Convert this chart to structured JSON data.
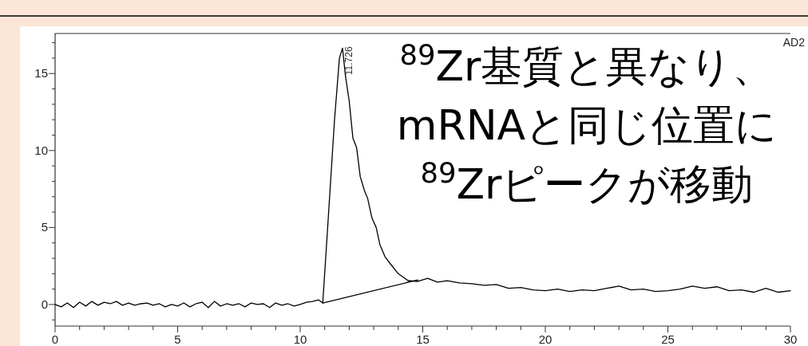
{
  "chart_data": {
    "type": "line",
    "marker": "none",
    "line_style": "solid",
    "xlim": [
      0,
      30
    ],
    "ylim": [
      -1.4,
      17.6
    ],
    "xticks": [
      0,
      {
        "value": 1,
        "label": null
      },
      {
        "value": 2,
        "label": null
      },
      {
        "value": 3,
        "label": null
      },
      {
        "value": 4,
        "label": null
      },
      5,
      {
        "value": 6,
        "label": null
      },
      {
        "value": 7,
        "label": null
      },
      {
        "value": 8,
        "label": null
      },
      {
        "value": 9,
        "label": null
      },
      10,
      {
        "value": 11,
        "label": null
      },
      {
        "value": 12,
        "label": null
      },
      {
        "value": 13,
        "label": null
      },
      {
        "value": 14,
        "label": null
      },
      15,
      {
        "value": 16,
        "label": null
      },
      {
        "value": 17,
        "label": null
      },
      {
        "value": 18,
        "label": null
      },
      {
        "value": 19,
        "label": null
      },
      20,
      {
        "value": 21,
        "label": null
      },
      {
        "value": 22,
        "label": null
      },
      {
        "value": 23,
        "label": null
      },
      {
        "value": 24,
        "label": null
      },
      25,
      {
        "value": 26,
        "label": null
      },
      {
        "value": 27,
        "label": null
      },
      {
        "value": 28,
        "label": null
      },
      {
        "value": 29,
        "label": null
      },
      30
    ],
    "yticks": [
      {
        "value": -1,
        "label": null
      },
      0,
      {
        "value": 1,
        "label": null
      },
      {
        "value": 2,
        "label": null
      },
      {
        "value": 3,
        "label": null
      },
      {
        "value": 4,
        "label": null
      },
      5,
      {
        "value": 6,
        "label": null
      },
      {
        "value": 7,
        "label": null
      },
      {
        "value": 8,
        "label": null
      },
      {
        "value": 9,
        "label": null
      },
      10,
      {
        "value": 11,
        "label": null
      },
      {
        "value": 12,
        "label": null
      },
      {
        "value": 13,
        "label": null
      },
      {
        "value": 14,
        "label": null
      },
      15,
      {
        "value": 16,
        "label": null
      },
      {
        "value": 17,
        "label": null
      }
    ],
    "series": [
      {
        "color": "#000000",
        "x": [
          0,
          0.25,
          0.5,
          0.75,
          1.0,
          1.25,
          1.5,
          1.75,
          2.0,
          2.25,
          2.5,
          2.75,
          3.0,
          3.25,
          3.5,
          3.75,
          4.0,
          4.25,
          4.5,
          4.75,
          5.0,
          5.25,
          5.5,
          5.75,
          6.0,
          6.25,
          6.5,
          6.75,
          7.0,
          7.25,
          7.5,
          7.75,
          8.0,
          8.25,
          8.5,
          8.75,
          9.0,
          9.25,
          9.5,
          9.75,
          10.0,
          10.25,
          10.5,
          10.75,
          10.92,
          11.1,
          11.4,
          11.6,
          11.726,
          11.85,
          12.0,
          12.15,
          12.3,
          12.45,
          12.62,
          12.75,
          12.93,
          13.1,
          13.25,
          13.46,
          13.7,
          14.0,
          14.4,
          14.8,
          15.2,
          15.6,
          16.0,
          16.5,
          17.0,
          17.5,
          18.0,
          18.5,
          19.0,
          19.5,
          20.0,
          20.5,
          21.0,
          21.5,
          22.0,
          22.5,
          23.0,
          23.5,
          24.0,
          24.5,
          25.0,
          25.5,
          26.0,
          26.5,
          27.0,
          27.5,
          28.0,
          28.5,
          29.0,
          29.5,
          30.0
        ],
        "values": [
          0,
          -0.15,
          0.1,
          -0.2,
          0.15,
          -0.1,
          0.2,
          -0.05,
          0.15,
          0.05,
          0.2,
          -0.05,
          0.1,
          -0.05,
          0.05,
          0.1,
          -0.05,
          0.05,
          -0.15,
          0.0,
          -0.1,
          0.1,
          -0.15,
          0.05,
          0.15,
          -0.2,
          0.2,
          -0.1,
          0.05,
          -0.05,
          0.05,
          -0.15,
          0.1,
          0.0,
          0.05,
          -0.2,
          0.1,
          -0.05,
          0.05,
          -0.1,
          0.0,
          0.15,
          0.2,
          0.3,
          0.1,
          4.5,
          12.0,
          16.0,
          16.65,
          14.8,
          13.2,
          10.8,
          10.2,
          8.3,
          7.4,
          6.9,
          5.6,
          5.0,
          3.9,
          3.1,
          2.6,
          2.0,
          1.55,
          1.5,
          1.7,
          1.45,
          1.55,
          1.4,
          1.35,
          1.25,
          1.3,
          1.05,
          1.1,
          0.95,
          0.9,
          1.0,
          0.85,
          0.95,
          0.9,
          1.05,
          1.2,
          0.95,
          1.0,
          0.85,
          0.9,
          1.0,
          1.2,
          1.05,
          1.15,
          0.9,
          0.95,
          0.8,
          1.05,
          0.8,
          0.9
        ]
      },
      {
        "color": "#000000",
        "x": [
          10.92,
          14.8
        ],
        "values": [
          0.1,
          1.6
        ]
      }
    ],
    "annotations": [
      {
        "text": "11.726",
        "x": 11.726,
        "y": 16.65
      },
      "AD2",
      "$^{89}$Zr基質と異なり、",
      "mRNAと同じ位置に",
      "$^{89}$Zrピークが移動"
    ]
  }
}
